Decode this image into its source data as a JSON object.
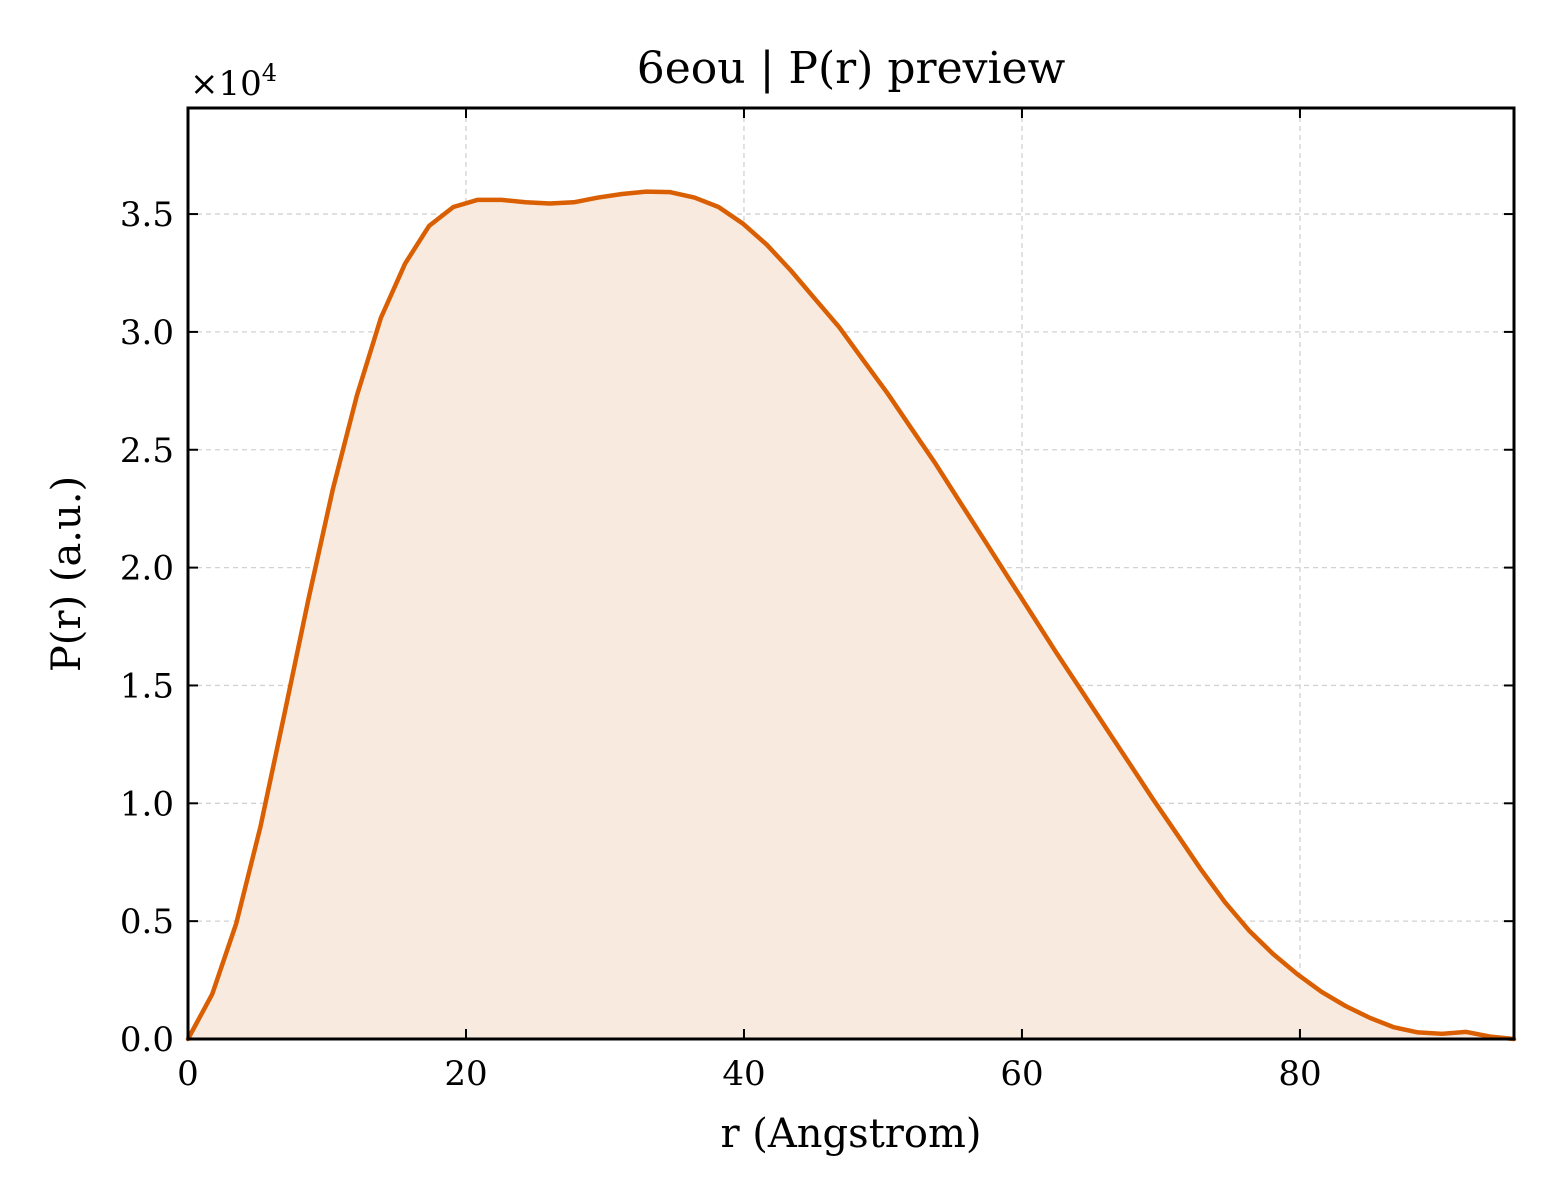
{
  "colors": {
    "line": "#d95f02",
    "fill": "#f9eadf",
    "axes": "#000000",
    "grid": "#d2d2d2"
  },
  "chart_data": {
    "type": "area",
    "title": "6eou | P(r) preview",
    "xlabel": "r (Angstrom)",
    "ylabel": "P(r) (a.u.)",
    "y_multiplier": "×10",
    "y_multiplier_exp": "4",
    "xlim": [
      0,
      95.4
    ],
    "ylim": [
      0,
      39500
    ],
    "grid": true,
    "x_ticks": [
      0,
      20,
      40,
      60,
      80
    ],
    "x_tick_labels": [
      "0",
      "20",
      "40",
      "60",
      "80"
    ],
    "y_ticks": [
      0,
      5000,
      10000,
      15000,
      20000,
      25000,
      30000,
      35000
    ],
    "y_tick_labels": [
      "0.0",
      "0.5",
      "1.0",
      "1.5",
      "2.0",
      "2.5",
      "3.0",
      "3.5"
    ],
    "series": [
      {
        "x": [
          0,
          1.74,
          3.47,
          5.21,
          6.94,
          8.68,
          10.41,
          12.15,
          13.88,
          15.62,
          17.35,
          19.09,
          20.82,
          22.56,
          24.29,
          26.03,
          27.76,
          29.5,
          31.23,
          32.97,
          34.7,
          36.44,
          38.17,
          39.91,
          41.64,
          43.38,
          45.11,
          46.85,
          48.58,
          50.32,
          52.05,
          53.79,
          55.52,
          57.26,
          58.99,
          60.73,
          62.46,
          64.2,
          65.93,
          67.67,
          69.4,
          71.14,
          72.87,
          74.61,
          76.34,
          78.08,
          79.81,
          81.55,
          83.28,
          85.02,
          86.75,
          88.49,
          90.22,
          91.96,
          93.69,
          95.4
        ],
        "y": [
          0,
          1900,
          4900,
          9000,
          13800,
          18700,
          23300,
          27300,
          30600,
          32900,
          34500,
          35300,
          35600,
          35600,
          35500,
          35450,
          35500,
          35700,
          35850,
          35950,
          35930,
          35700,
          35300,
          34600,
          33700,
          32600,
          31400,
          30200,
          28800,
          27400,
          25900,
          24400,
          22800,
          21200,
          19600,
          18000,
          16400,
          14850,
          13300,
          11750,
          10200,
          8700,
          7200,
          5800,
          4600,
          3600,
          2750,
          2000,
          1400,
          900,
          500,
          280,
          220,
          300,
          100,
          0
        ]
      }
    ]
  }
}
